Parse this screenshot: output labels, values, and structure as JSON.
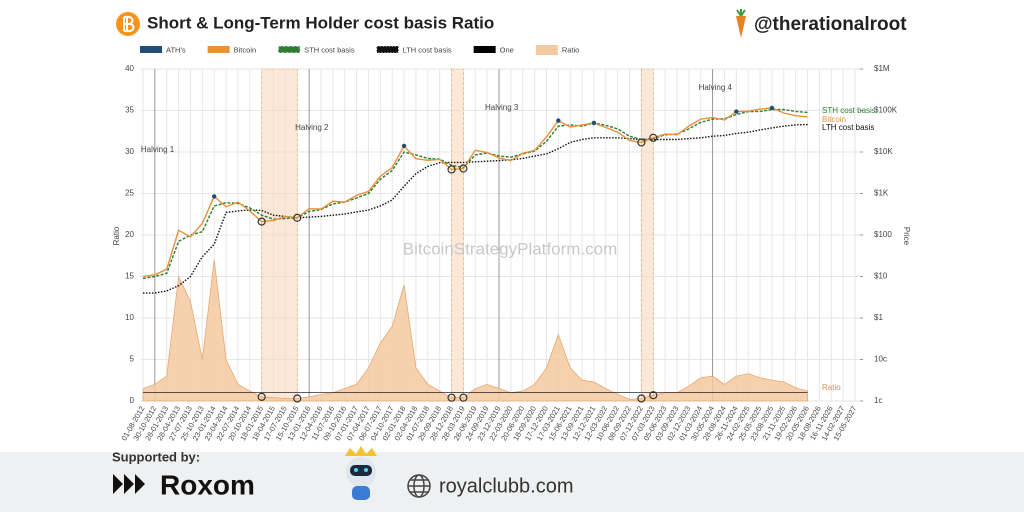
{
  "header": {
    "title": "Short & Long-Term Holder cost basis Ratio",
    "handle": "@therationalroot"
  },
  "chart_data": {
    "type": "line",
    "watermark": "BitcoinStrategyPlatform.com",
    "ylabel": "Ratio",
    "y2label": "Price",
    "categories": [
      "01-08-2012",
      "30-10-2012",
      "28-01-2013",
      "28-04-2013",
      "27-07-2013",
      "25-10-2013",
      "23-01-2014",
      "23-04-2014",
      "22-07-2014",
      "20-10-2014",
      "18-01-2015",
      "18-04-2015",
      "17-07-2015",
      "15-10-2015",
      "13-01-2016",
      "12-04-2016",
      "11-07-2016",
      "09-10-2016",
      "07-01-2017",
      "07-04-2017",
      "06-07-2017",
      "04-10-2017",
      "02-01-2018",
      "02-04-2018",
      "01-07-2018",
      "29-09-2018",
      "28-12-2018",
      "28-03-2019",
      "26-06-2019",
      "24-09-2019",
      "23-12-2019",
      "22-03-2020",
      "20-06-2020",
      "18-09-2020",
      "17-12-2020",
      "17-03-2021",
      "15-06-2021",
      "13-09-2021",
      "12-12-2021",
      "12-03-2022",
      "10-06-2022",
      "08-09-2022",
      "07-12-2022",
      "07-03-2023",
      "05-06-2023",
      "03-09-2023",
      "02-12-2023",
      "01-03-2024",
      "30-05-2024",
      "28-08-2024",
      "26-11-2024",
      "24-02-2025",
      "25-05-2025",
      "23-08-2025",
      "21-11-2025",
      "19-02-2026",
      "20-05-2026",
      "18-08-2026",
      "16-11-2026",
      "14-02-2027",
      "15-05-2027"
    ],
    "series": [
      {
        "name": "ATH's",
        "color": "#1f4e79",
        "axis": "y2",
        "style": "marker",
        "values": [
          null,
          null,
          null,
          null,
          null,
          null,
          850,
          null,
          null,
          null,
          null,
          null,
          null,
          null,
          null,
          null,
          null,
          null,
          null,
          null,
          null,
          null,
          14000,
          null,
          null,
          null,
          null,
          null,
          null,
          null,
          null,
          null,
          null,
          null,
          null,
          57000,
          null,
          null,
          50000,
          null,
          null,
          null,
          null,
          null,
          null,
          null,
          null,
          null,
          null,
          null,
          94000,
          null,
          null,
          115000,
          null,
          null,
          null,
          null,
          null,
          null,
          null
        ]
      },
      {
        "name": "Bitcoin",
        "color": "#e8913a",
        "axis": "y2",
        "style": "solid",
        "values": [
          10,
          11,
          15,
          130,
          90,
          190,
          850,
          480,
          620,
          380,
          210,
          225,
          280,
          260,
          430,
          420,
          650,
          620,
          900,
          1120,
          2600,
          4200,
          14000,
          6900,
          6300,
          6600,
          3800,
          4000,
          11000,
          9700,
          7200,
          6200,
          9300,
          10900,
          23000,
          57000,
          40000,
          45000,
          50000,
          39000,
          30000,
          19000,
          17000,
          22000,
          27000,
          26000,
          42000,
          62000,
          68000,
          59000,
          94000,
          96000,
          108000,
          115000,
          87000,
          75000,
          70000,
          null,
          null,
          null,
          null
        ]
      },
      {
        "name": "STH cost basis",
        "color": "#2e7d32",
        "axis": "y2",
        "style": "dashed",
        "values": [
          9,
          10,
          12,
          70,
          100,
          120,
          500,
          600,
          580,
          450,
          300,
          240,
          250,
          260,
          370,
          410,
          560,
          620,
          780,
          1000,
          2200,
          3600,
          10000,
          8500,
          7000,
          6700,
          4800,
          4200,
          8500,
          9500,
          8000,
          7500,
          9000,
          10500,
          18000,
          42000,
          45000,
          42000,
          50000,
          44000,
          36000,
          24000,
          20000,
          21000,
          26000,
          27000,
          36000,
          52000,
          62000,
          63000,
          80000,
          94000,
          95000,
          105000,
          105000,
          95000,
          90000,
          null,
          null,
          null,
          null
        ]
      },
      {
        "name": "LTH cost basis",
        "color": "#111111",
        "axis": "y2",
        "style": "dotted",
        "values": [
          4,
          4,
          4.5,
          6,
          10,
          30,
          60,
          350,
          380,
          400,
          390,
          300,
          280,
          260,
          270,
          280,
          300,
          320,
          360,
          400,
          500,
          700,
          1500,
          3000,
          4500,
          5500,
          5600,
          5600,
          5800,
          6000,
          6200,
          6500,
          7000,
          8000,
          9000,
          12000,
          17000,
          20000,
          22000,
          22000,
          22000,
          21000,
          20000,
          20000,
          20000,
          20000,
          21000,
          22000,
          24000,
          25000,
          28000,
          30000,
          34000,
          38000,
          42000,
          45000,
          46000,
          null,
          null,
          null,
          null
        ]
      },
      {
        "name": "One",
        "color": "#000000",
        "axis": "y",
        "style": "thin",
        "values": [
          1,
          1,
          1,
          1,
          1,
          1,
          1,
          1,
          1,
          1,
          1,
          1,
          1,
          1,
          1,
          1,
          1,
          1,
          1,
          1,
          1,
          1,
          1,
          1,
          1,
          1,
          1,
          1,
          1,
          1,
          1,
          1,
          1,
          1,
          1,
          1,
          1,
          1,
          1,
          1,
          1,
          1,
          1,
          1,
          1,
          1,
          1,
          1,
          1,
          1,
          1,
          1,
          1,
          1,
          1,
          1,
          1,
          null,
          null,
          null,
          null
        ]
      },
      {
        "name": "Ratio",
        "color": "#f5c9a0",
        "axis": "y",
        "style": "area",
        "values": [
          1.5,
          2,
          3,
          15,
          12,
          5,
          17,
          5,
          2,
          1.2,
          0.5,
          0.4,
          0.3,
          0.3,
          0.5,
          0.8,
          1,
          1.5,
          2,
          4,
          7,
          9,
          14,
          4,
          2,
          1.2,
          0.4,
          0.4,
          1.5,
          2,
          1.5,
          1,
          1.2,
          2,
          4,
          8,
          4,
          2.5,
          2.3,
          1.5,
          0.8,
          0.2,
          0.3,
          0.7,
          1,
          1,
          1.8,
          2.8,
          3,
          2,
          3,
          3.3,
          2.8,
          2.5,
          2.3,
          1.6,
          1.2,
          null,
          null,
          null,
          null
        ]
      }
    ],
    "ylim": [
      0,
      40
    ],
    "yticks": [
      0,
      5,
      10,
      15,
      20,
      25,
      30,
      35,
      40
    ],
    "y2lim": [
      0.01,
      1000000
    ],
    "y2log": true,
    "y2ticks": [
      {
        "value": 0.01,
        "label": "1c"
      },
      {
        "value": 0.1,
        "label": "10c"
      },
      {
        "value": 1,
        "label": "$1"
      },
      {
        "value": 10,
        "label": "$10"
      },
      {
        "value": 100,
        "label": "$100"
      },
      {
        "value": 1000,
        "label": "$1K"
      },
      {
        "value": 10000,
        "label": "$10K"
      },
      {
        "value": 100000,
        "label": "$100K"
      },
      {
        "value": 1000000,
        "label": "$1M"
      }
    ],
    "grid": true,
    "highlight_ranges": [
      [
        "18-01-2015",
        "15-10-2015"
      ],
      [
        "28-12-2018",
        "28-03-2019"
      ],
      [
        "07-12-2022",
        "07-03-2023"
      ]
    ],
    "annotations": [
      {
        "label": "Halving 1",
        "x": "30-10-2012"
      },
      {
        "label": "Halving 2",
        "x": "13-01-2016"
      },
      {
        "label": "Halving 3",
        "x": "23-12-2019"
      },
      {
        "label": "Halving 4",
        "x": "30-05-2024"
      }
    ]
  },
  "footer": {
    "supported": "Supported by:",
    "sponsor": "Roxom",
    "website": "royalclubb.com"
  }
}
